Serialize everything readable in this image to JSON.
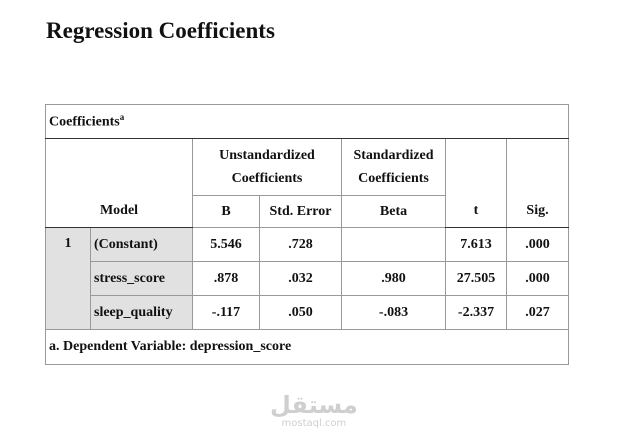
{
  "title": "Regression Coefficients",
  "table": {
    "caption": "Coefficients",
    "caption_marker": "a",
    "header": {
      "unstandardized": "Unstandardized Coefficients",
      "standardized": "Standardized Coefficients",
      "model": "Model",
      "columns": [
        "B",
        "Std. Error",
        "Beta",
        "t",
        "Sig."
      ]
    },
    "model": "1",
    "rows": [
      [
        "(Constant)",
        "5.546",
        ".728",
        null,
        "7.613",
        ".000"
      ],
      [
        "stress_score",
        ".878",
        ".032",
        ".980",
        "27.505",
        ".000"
      ],
      [
        "sleep_quality",
        "-.117",
        ".050",
        "-.083",
        "-2.337",
        ".027"
      ]
    ],
    "footnote": "a. Dependent Variable: depression_score"
  },
  "watermark": {
    "arabic": "مستقل",
    "latin": "mostaql.com"
  }
}
